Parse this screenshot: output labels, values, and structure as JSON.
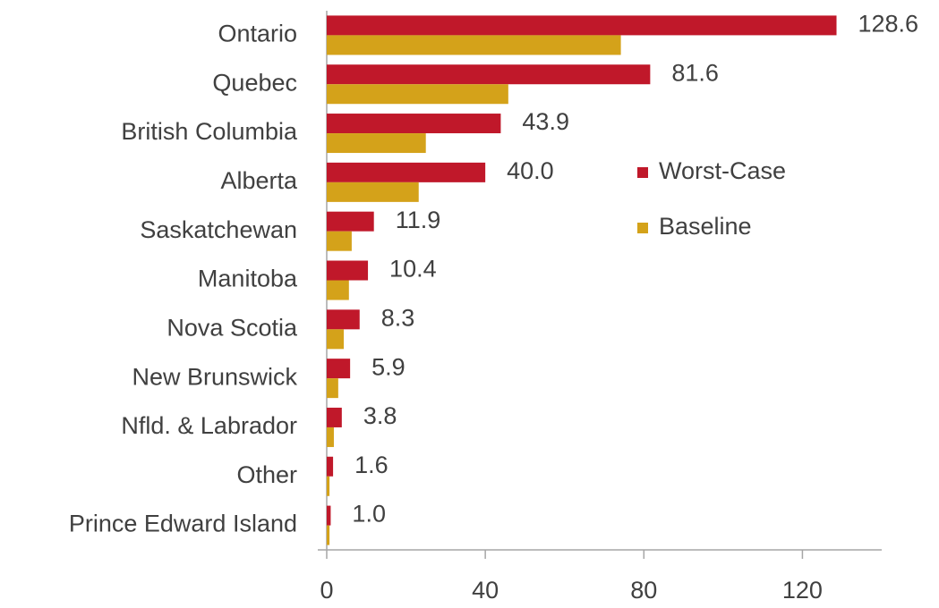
{
  "chart_data": {
    "type": "bar",
    "orientation": "horizontal",
    "categories": [
      "Ontario",
      "Quebec",
      "British Columbia",
      "Alberta",
      "Saskatchewan",
      "Manitoba",
      "Nova Scotia",
      "New Brunswick",
      "Nfld. & Labrador",
      "Other",
      "Prince Edward Island"
    ],
    "series": [
      {
        "name": "Worst-Case",
        "color": "#c0182a",
        "values": [
          128.6,
          81.6,
          43.9,
          40.0,
          11.9,
          10.4,
          8.3,
          5.9,
          3.8,
          1.6,
          1.0
        ],
        "value_labels": [
          "128.6",
          "81.6",
          "43.9",
          "40.0",
          "11.9",
          "10.4",
          "8.3",
          "5.9",
          "3.8",
          "1.6",
          "1.0"
        ]
      },
      {
        "name": "Baseline",
        "color": "#d4a21a",
        "values": [
          74.2,
          45.8,
          25.0,
          23.2,
          6.3,
          5.6,
          4.3,
          2.9,
          1.8,
          0.7,
          0.7
        ]
      }
    ],
    "xlim": [
      0,
      140
    ],
    "xticks": [
      0,
      40,
      80,
      120
    ],
    "legend": "upper right"
  }
}
